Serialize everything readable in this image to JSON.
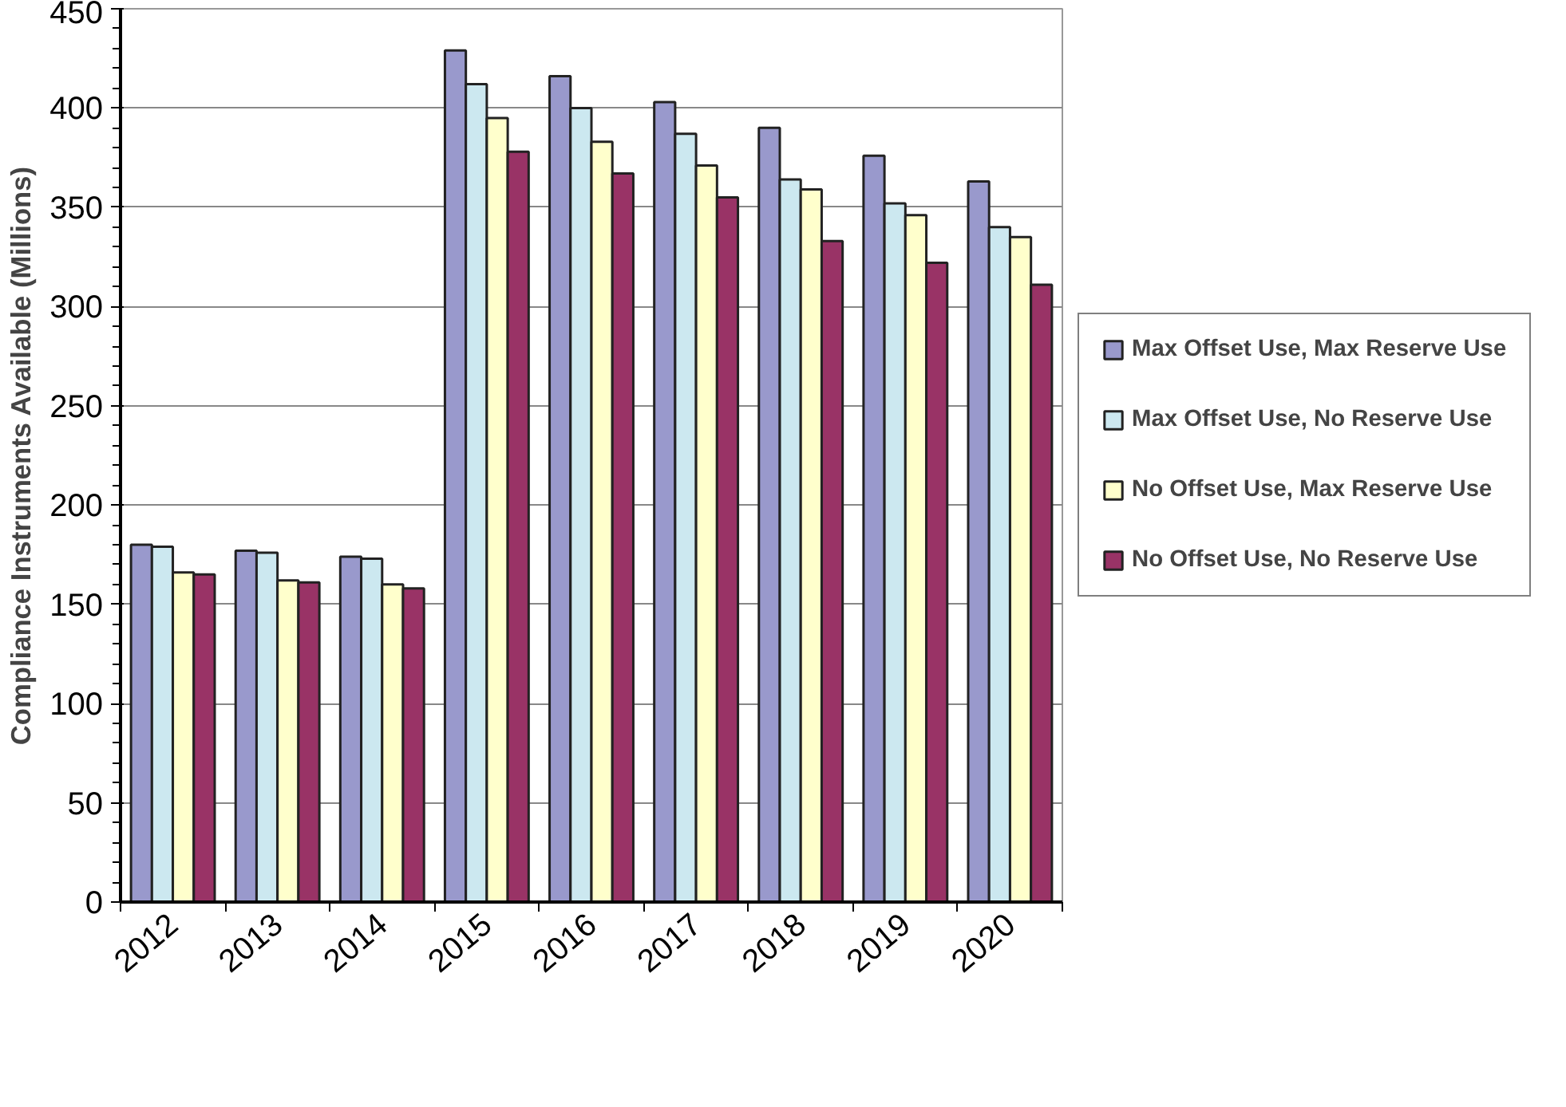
{
  "chart_data": {
    "type": "bar",
    "ylabel": "Compliance Instruments Available (Millions)",
    "categories": [
      "2012",
      "2013",
      "2014",
      "2015",
      "2016",
      "2017",
      "2018",
      "2019",
      "2020"
    ],
    "series": [
      {
        "name": "Max Offset Use, Max Reserve Use",
        "color": "#9999cc",
        "values": [
          180,
          177,
          174,
          429,
          416,
          403,
          390,
          376,
          363
        ]
      },
      {
        "name": "Max Offset Use, No Reserve Use",
        "color": "#cce8f0",
        "values": [
          179,
          176,
          173,
          412,
          400,
          387,
          364,
          352,
          340
        ]
      },
      {
        "name": "No Offset Use, Max Reserve Use",
        "color": "#ffffcc",
        "values": [
          166,
          162,
          160,
          395,
          383,
          371,
          359,
          346,
          335
        ]
      },
      {
        "name": "No Offset Use, No Reserve Use",
        "color": "#993366",
        "values": [
          165,
          161,
          158,
          378,
          367,
          355,
          333,
          322,
          311
        ]
      }
    ],
    "ylim": [
      0,
      450
    ],
    "yticks": [
      0,
      50,
      100,
      150,
      200,
      250,
      300,
      350,
      400,
      450
    ],
    "grid": "y",
    "legend": "right"
  }
}
